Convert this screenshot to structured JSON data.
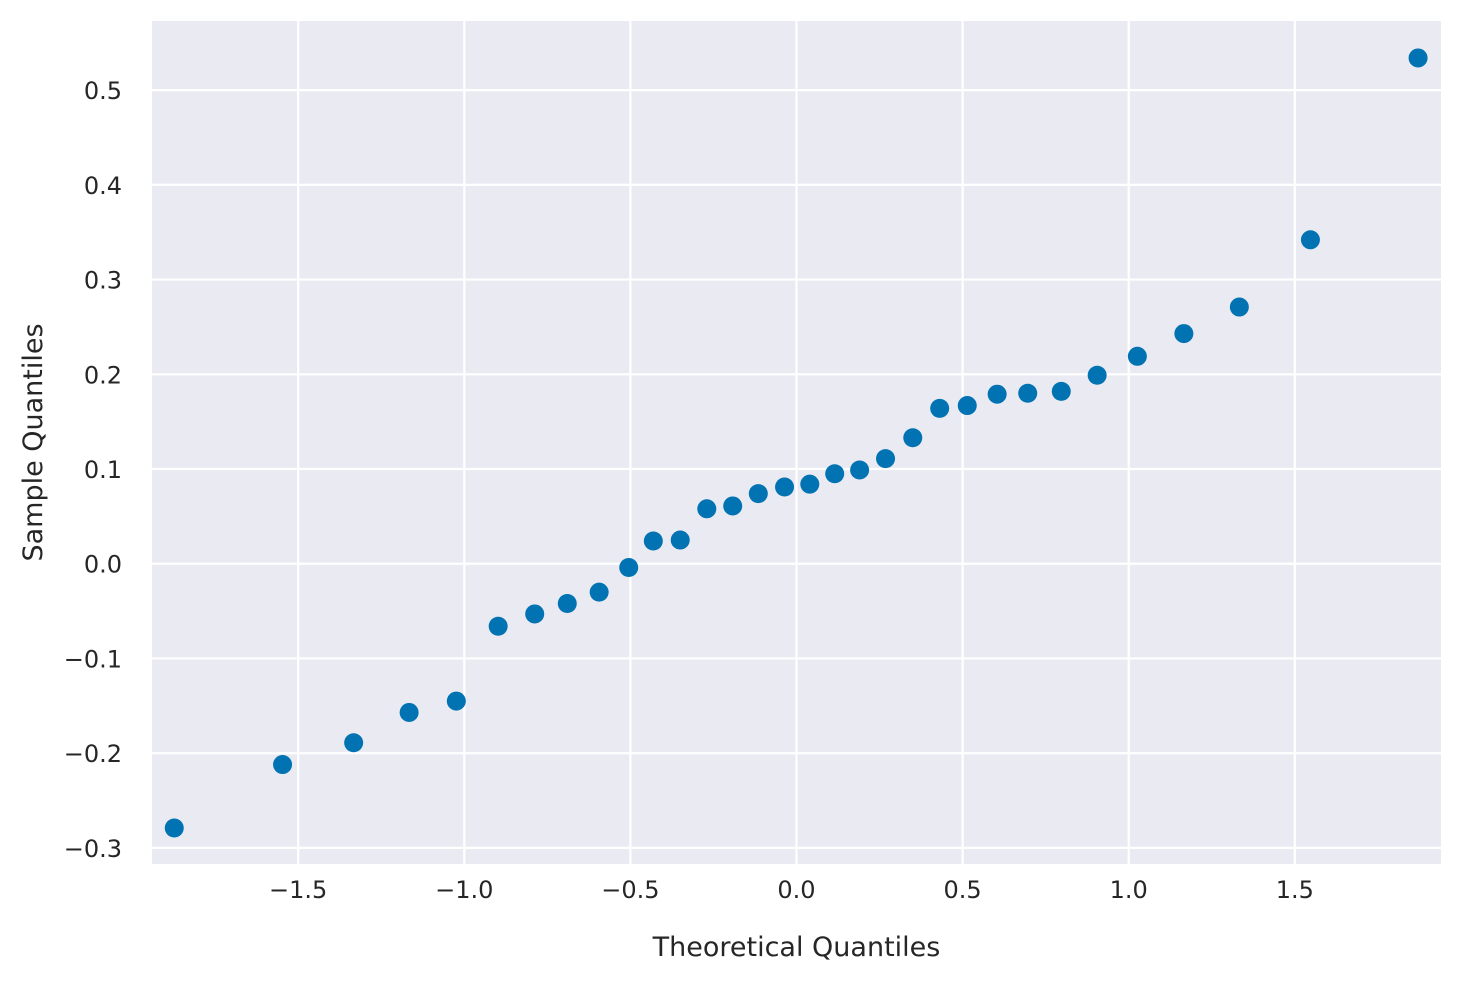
{
  "chart_data": {
    "type": "scatter",
    "title": "",
    "xlabel": "Theoretical Quantiles",
    "ylabel": "Sample Quantiles",
    "xlim": [
      -1.94,
      1.94
    ],
    "ylim": [
      -0.317,
      0.573
    ],
    "x_ticks": [
      -1.5,
      -1.0,
      -0.5,
      0.0,
      0.5,
      1.0,
      1.5
    ],
    "x_tick_labels": [
      "−1.5",
      "−1.0",
      "−0.5",
      "0.0",
      "0.5",
      "1.0",
      "1.5"
    ],
    "y_ticks": [
      -0.3,
      -0.2,
      -0.1,
      0.0,
      0.1,
      0.2,
      0.3,
      0.4,
      0.5
    ],
    "y_tick_labels": [
      "−0.3",
      "−0.2",
      "−0.1",
      "0.0",
      "0.1",
      "0.2",
      "0.3",
      "0.4",
      "0.5"
    ],
    "grid": true,
    "colors": {
      "background": "#eaeaf2",
      "grid": "#ffffff",
      "marker": "#0173b2",
      "text": "#262626"
    },
    "series": [
      {
        "x": [
          -1.873,
          -1.547,
          -1.333,
          -1.166,
          -1.024,
          -0.898,
          -0.788,
          -0.69,
          -0.594,
          -0.505,
          -0.431,
          -0.35,
          -0.27,
          -0.192,
          -0.115,
          -0.036,
          0.04,
          0.115,
          0.19,
          0.268,
          0.35,
          0.431,
          0.514,
          0.604,
          0.696,
          0.797,
          0.905,
          1.026,
          1.166,
          1.333,
          1.547,
          1.871
        ],
        "y": [
          -0.279,
          -0.212,
          -0.189,
          -0.157,
          -0.145,
          -0.066,
          -0.053,
          -0.042,
          -0.03,
          -0.004,
          0.024,
          0.025,
          0.058,
          0.061,
          0.074,
          0.081,
          0.084,
          0.095,
          0.099,
          0.111,
          0.133,
          0.164,
          0.167,
          0.179,
          0.18,
          0.182,
          0.199,
          0.219,
          0.243,
          0.271,
          0.342,
          0.534
        ]
      }
    ]
  }
}
